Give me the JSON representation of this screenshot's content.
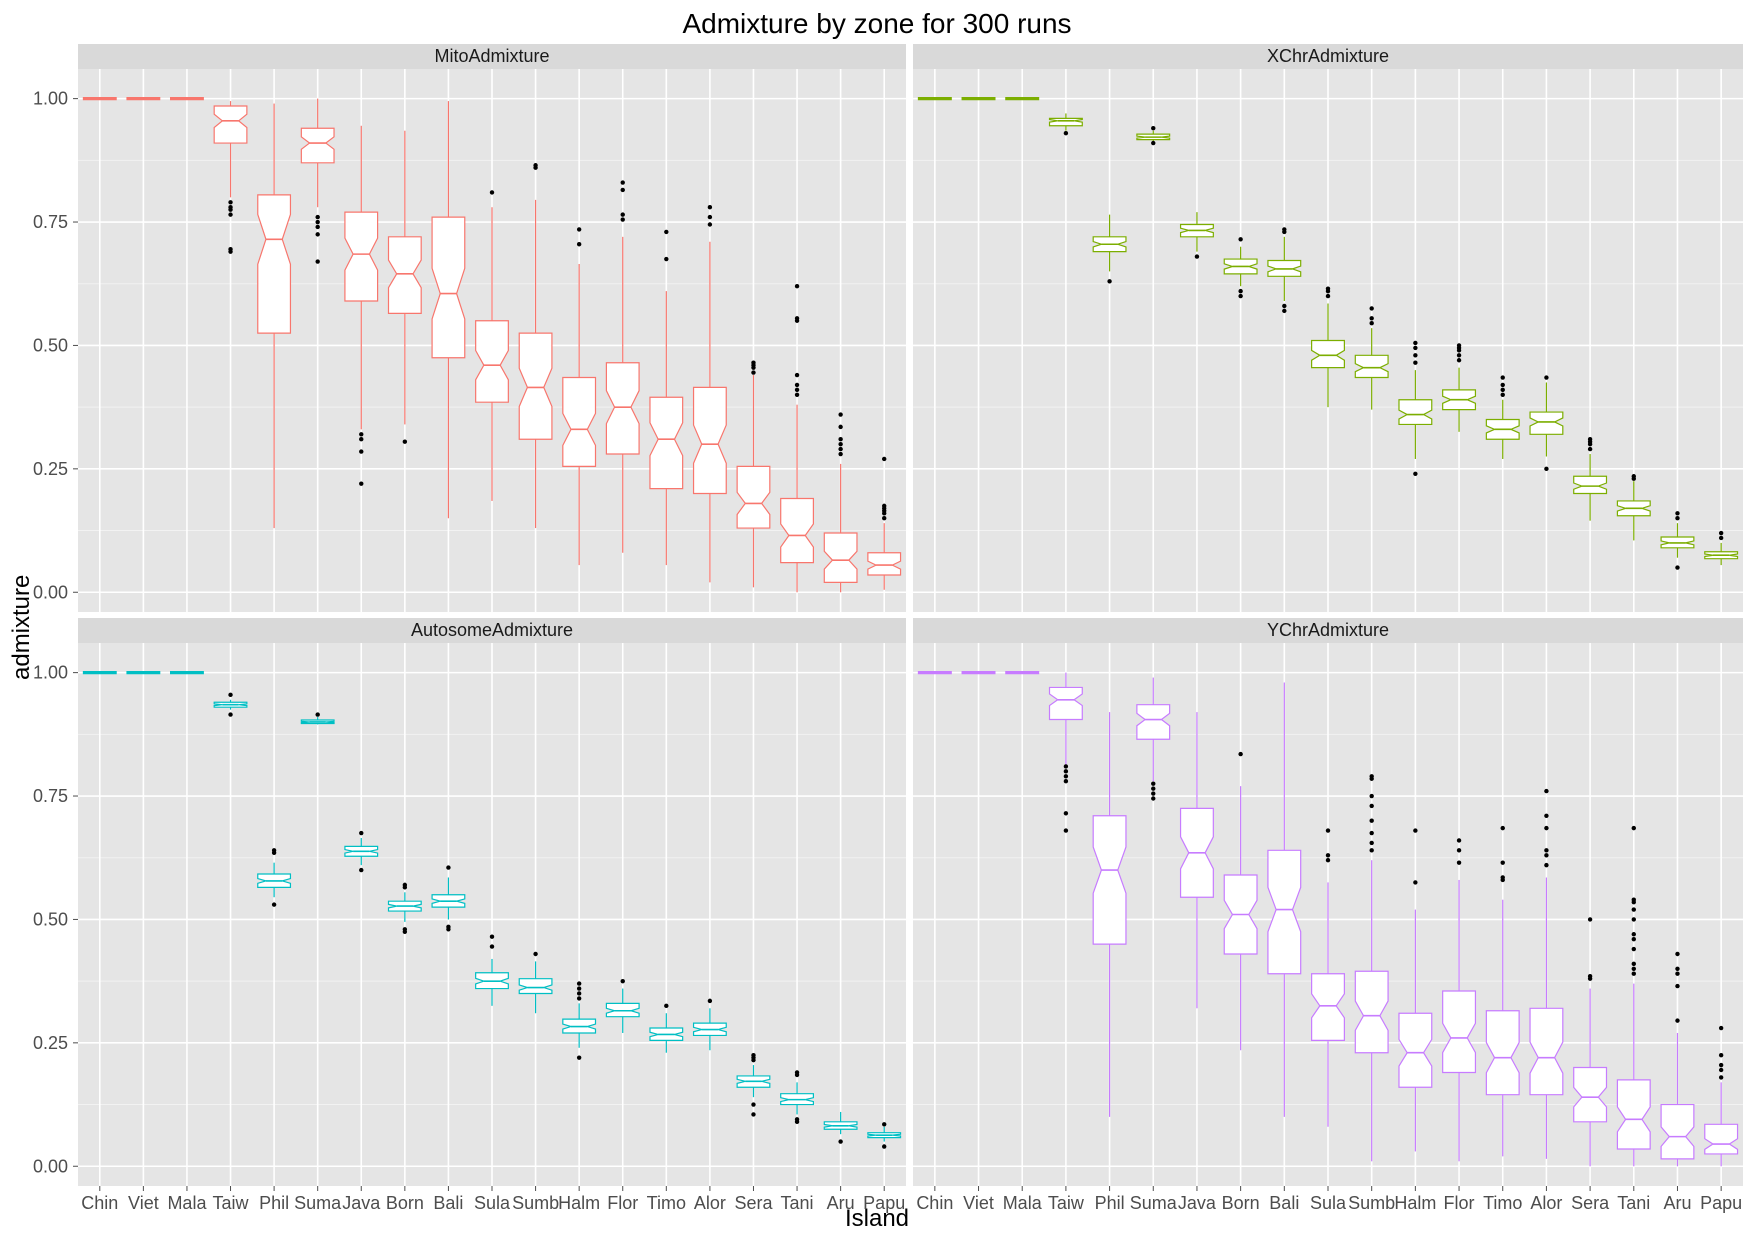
{
  "title": "Admixture by zone for 300 runs",
  "xlabel": "Island",
  "ylabel": "admixture",
  "chart_data": {
    "type": "boxplot",
    "title": "Admixture by zone for 300 runs",
    "xlabel": "Island",
    "ylabel": "admixture",
    "ylim": [
      -0.04,
      1.06
    ],
    "y_ticks": [
      0.0,
      0.25,
      0.5,
      0.75,
      1.0
    ],
    "y_tick_labels": [
      "0.00",
      "0.25",
      "0.50",
      "0.75",
      "1.00"
    ],
    "categories": [
      "Chin",
      "Viet",
      "Mala",
      "Taiw",
      "Phil",
      "Suma",
      "Java",
      "Born",
      "Bali",
      "Sula",
      "Sumb",
      "Halm",
      "Flor",
      "Timo",
      "Alor",
      "Sera",
      "Tani",
      "Aru",
      "Papu"
    ],
    "notched": true,
    "grid": true,
    "legend": "none",
    "panels": [
      {
        "name": "MitoAdmixture",
        "color": "#F8766D",
        "boxes": [
          {
            "min": 1.0,
            "q1": 1.0,
            "median": 1.0,
            "q3": 1.0,
            "max": 1.0,
            "outliers": []
          },
          {
            "min": 1.0,
            "q1": 1.0,
            "median": 1.0,
            "q3": 1.0,
            "max": 1.0,
            "outliers": []
          },
          {
            "min": 1.0,
            "q1": 1.0,
            "median": 1.0,
            "q3": 1.0,
            "max": 1.0,
            "outliers": []
          },
          {
            "min": 0.8,
            "q1": 0.91,
            "median": 0.955,
            "q3": 0.985,
            "max": 0.995,
            "outliers": [
              0.69,
              0.695,
              0.765,
              0.775,
              0.78,
              0.79
            ]
          },
          {
            "min": 0.13,
            "q1": 0.525,
            "median": 0.715,
            "q3": 0.805,
            "max": 0.99,
            "outliers": []
          },
          {
            "min": 0.78,
            "q1": 0.87,
            "median": 0.91,
            "q3": 0.94,
            "max": 1.0,
            "outliers": [
              0.67,
              0.725,
              0.74,
              0.75,
              0.76
            ]
          },
          {
            "min": 0.33,
            "q1": 0.59,
            "median": 0.685,
            "q3": 0.77,
            "max": 0.945,
            "outliers": [
              0.22,
              0.285,
              0.31,
              0.32
            ]
          },
          {
            "min": 0.34,
            "q1": 0.565,
            "median": 0.645,
            "q3": 0.72,
            "max": 0.935,
            "outliers": [
              0.305
            ]
          },
          {
            "min": 0.15,
            "q1": 0.475,
            "median": 0.605,
            "q3": 0.76,
            "max": 0.995,
            "outliers": []
          },
          {
            "min": 0.185,
            "q1": 0.385,
            "median": 0.46,
            "q3": 0.55,
            "max": 0.78,
            "outliers": [
              0.81
            ]
          },
          {
            "min": 0.13,
            "q1": 0.31,
            "median": 0.415,
            "q3": 0.525,
            "max": 0.795,
            "outliers": [
              0.86,
              0.865
            ]
          },
          {
            "min": 0.055,
            "q1": 0.255,
            "median": 0.33,
            "q3": 0.435,
            "max": 0.665,
            "outliers": [
              0.705,
              0.735
            ]
          },
          {
            "min": 0.08,
            "q1": 0.28,
            "median": 0.375,
            "q3": 0.465,
            "max": 0.72,
            "outliers": [
              0.755,
              0.765,
              0.815,
              0.83
            ]
          },
          {
            "min": 0.055,
            "q1": 0.21,
            "median": 0.31,
            "q3": 0.395,
            "max": 0.61,
            "outliers": [
              0.675,
              0.73
            ]
          },
          {
            "min": 0.02,
            "q1": 0.2,
            "median": 0.3,
            "q3": 0.415,
            "max": 0.71,
            "outliers": [
              0.745,
              0.76,
              0.78
            ]
          },
          {
            "min": 0.01,
            "q1": 0.13,
            "median": 0.18,
            "q3": 0.255,
            "max": 0.44,
            "outliers": [
              0.445,
              0.455,
              0.46,
              0.465
            ]
          },
          {
            "min": 0.0,
            "q1": 0.06,
            "median": 0.115,
            "q3": 0.19,
            "max": 0.38,
            "outliers": [
              0.4,
              0.41,
              0.42,
              0.44,
              0.55,
              0.555,
              0.62
            ]
          },
          {
            "min": 0.0,
            "q1": 0.02,
            "median": 0.065,
            "q3": 0.12,
            "max": 0.26,
            "outliers": [
              0.28,
              0.29,
              0.3,
              0.31,
              0.335,
              0.36
            ]
          },
          {
            "min": 0.005,
            "q1": 0.035,
            "median": 0.055,
            "q3": 0.08,
            "max": 0.14,
            "outliers": [
              0.15,
              0.16,
              0.165,
              0.17,
              0.175,
              0.27
            ]
          }
        ]
      },
      {
        "name": "XChrAdmixture",
        "color": "#7CAE00",
        "boxes": [
          {
            "min": 1.0,
            "q1": 1.0,
            "median": 1.0,
            "q3": 1.0,
            "max": 1.0,
            "outliers": []
          },
          {
            "min": 1.0,
            "q1": 1.0,
            "median": 1.0,
            "q3": 1.0,
            "max": 1.0,
            "outliers": []
          },
          {
            "min": 1.0,
            "q1": 1.0,
            "median": 1.0,
            "q3": 1.0,
            "max": 1.0,
            "outliers": []
          },
          {
            "min": 0.935,
            "q1": 0.945,
            "median": 0.955,
            "q3": 0.96,
            "max": 0.97,
            "outliers": [
              0.93
            ]
          },
          {
            "min": 0.65,
            "q1": 0.69,
            "median": 0.705,
            "q3": 0.72,
            "max": 0.765,
            "outliers": [
              0.63
            ]
          },
          {
            "min": 0.91,
            "q1": 0.917,
            "median": 0.922,
            "q3": 0.928,
            "max": 0.935,
            "outliers": [
              0.91,
              0.94
            ]
          },
          {
            "min": 0.69,
            "q1": 0.72,
            "median": 0.733,
            "q3": 0.745,
            "max": 0.77,
            "outliers": [
              0.68
            ]
          },
          {
            "min": 0.62,
            "q1": 0.645,
            "median": 0.66,
            "q3": 0.675,
            "max": 0.7,
            "outliers": [
              0.6,
              0.61,
              0.715
            ]
          },
          {
            "min": 0.59,
            "q1": 0.64,
            "median": 0.655,
            "q3": 0.672,
            "max": 0.72,
            "outliers": [
              0.57,
              0.58,
              0.73,
              0.735
            ]
          },
          {
            "min": 0.375,
            "q1": 0.455,
            "median": 0.48,
            "q3": 0.51,
            "max": 0.585,
            "outliers": [
              0.6,
              0.61,
              0.615
            ]
          },
          {
            "min": 0.37,
            "q1": 0.435,
            "median": 0.455,
            "q3": 0.48,
            "max": 0.535,
            "outliers": [
              0.545,
              0.555,
              0.575
            ]
          },
          {
            "min": 0.27,
            "q1": 0.34,
            "median": 0.36,
            "q3": 0.39,
            "max": 0.45,
            "outliers": [
              0.24,
              0.465,
              0.48,
              0.495,
              0.505
            ]
          },
          {
            "min": 0.325,
            "q1": 0.37,
            "median": 0.39,
            "q3": 0.41,
            "max": 0.455,
            "outliers": [
              0.47,
              0.48,
              0.49,
              0.495,
              0.5
            ]
          },
          {
            "min": 0.27,
            "q1": 0.31,
            "median": 0.33,
            "q3": 0.35,
            "max": 0.39,
            "outliers": [
              0.4,
              0.41,
              0.42,
              0.435
            ]
          },
          {
            "min": 0.275,
            "q1": 0.32,
            "median": 0.345,
            "q3": 0.365,
            "max": 0.425,
            "outliers": [
              0.25,
              0.435
            ]
          },
          {
            "min": 0.145,
            "q1": 0.2,
            "median": 0.215,
            "q3": 0.235,
            "max": 0.28,
            "outliers": [
              0.29,
              0.3,
              0.305,
              0.31
            ]
          },
          {
            "min": 0.105,
            "q1": 0.155,
            "median": 0.17,
            "q3": 0.185,
            "max": 0.225,
            "outliers": [
              0.23,
              0.235
            ]
          },
          {
            "min": 0.07,
            "q1": 0.09,
            "median": 0.1,
            "q3": 0.112,
            "max": 0.14,
            "outliers": [
              0.05,
              0.15,
              0.16
            ]
          },
          {
            "min": 0.055,
            "q1": 0.068,
            "median": 0.075,
            "q3": 0.082,
            "max": 0.1,
            "outliers": [
              0.11,
              0.12
            ]
          }
        ]
      },
      {
        "name": "AutosomeAdmixture",
        "color": "#00BFC4",
        "boxes": [
          {
            "min": 1.0,
            "q1": 1.0,
            "median": 1.0,
            "q3": 1.0,
            "max": 1.0,
            "outliers": []
          },
          {
            "min": 1.0,
            "q1": 1.0,
            "median": 1.0,
            "q3": 1.0,
            "max": 1.0,
            "outliers": []
          },
          {
            "min": 1.0,
            "q1": 1.0,
            "median": 1.0,
            "q3": 1.0,
            "max": 1.0,
            "outliers": []
          },
          {
            "min": 0.925,
            "q1": 0.93,
            "median": 0.935,
            "q3": 0.94,
            "max": 0.945,
            "outliers": [
              0.915,
              0.955
            ]
          },
          {
            "min": 0.545,
            "q1": 0.565,
            "median": 0.578,
            "q3": 0.592,
            "max": 0.615,
            "outliers": [
              0.53,
              0.635,
              0.64
            ]
          },
          {
            "min": 0.895,
            "q1": 0.897,
            "median": 0.9,
            "q3": 0.904,
            "max": 0.91,
            "outliers": [
              0.915
            ]
          },
          {
            "min": 0.61,
            "q1": 0.628,
            "median": 0.638,
            "q3": 0.648,
            "max": 0.665,
            "outliers": [
              0.6,
              0.675
            ]
          },
          {
            "min": 0.495,
            "q1": 0.517,
            "median": 0.527,
            "q3": 0.537,
            "max": 0.555,
            "outliers": [
              0.475,
              0.48,
              0.565,
              0.57
            ]
          },
          {
            "min": 0.5,
            "q1": 0.525,
            "median": 0.537,
            "q3": 0.55,
            "max": 0.585,
            "outliers": [
              0.48,
              0.485,
              0.605
            ]
          },
          {
            "min": 0.325,
            "q1": 0.36,
            "median": 0.375,
            "q3": 0.392,
            "max": 0.42,
            "outliers": [
              0.445,
              0.465
            ]
          },
          {
            "min": 0.31,
            "q1": 0.35,
            "median": 0.362,
            "q3": 0.38,
            "max": 0.415,
            "outliers": [
              0.43
            ]
          },
          {
            "min": 0.24,
            "q1": 0.27,
            "median": 0.283,
            "q3": 0.298,
            "max": 0.33,
            "outliers": [
              0.22,
              0.34,
              0.35,
              0.36,
              0.37
            ]
          },
          {
            "min": 0.27,
            "q1": 0.303,
            "median": 0.315,
            "q3": 0.33,
            "max": 0.36,
            "outliers": [
              0.375
            ]
          },
          {
            "min": 0.23,
            "q1": 0.255,
            "median": 0.267,
            "q3": 0.28,
            "max": 0.31,
            "outliers": [
              0.325
            ]
          },
          {
            "min": 0.235,
            "q1": 0.265,
            "median": 0.277,
            "q3": 0.29,
            "max": 0.32,
            "outliers": [
              0.335
            ]
          },
          {
            "min": 0.14,
            "q1": 0.16,
            "median": 0.172,
            "q3": 0.183,
            "max": 0.205,
            "outliers": [
              0.105,
              0.125,
              0.215,
              0.22,
              0.225
            ]
          },
          {
            "min": 0.105,
            "q1": 0.125,
            "median": 0.135,
            "q3": 0.147,
            "max": 0.17,
            "outliers": [
              0.09,
              0.095,
              0.185,
              0.19
            ]
          },
          {
            "min": 0.065,
            "q1": 0.075,
            "median": 0.082,
            "q3": 0.09,
            "max": 0.11,
            "outliers": [
              0.05
            ]
          },
          {
            "min": 0.05,
            "q1": 0.058,
            "median": 0.063,
            "q3": 0.068,
            "max": 0.08,
            "outliers": [
              0.04,
              0.085
            ]
          }
        ]
      },
      {
        "name": "YChrAdmixture",
        "color": "#C77CFF",
        "boxes": [
          {
            "min": 1.0,
            "q1": 1.0,
            "median": 1.0,
            "q3": 1.0,
            "max": 1.0,
            "outliers": []
          },
          {
            "min": 1.0,
            "q1": 1.0,
            "median": 1.0,
            "q3": 1.0,
            "max": 1.0,
            "outliers": []
          },
          {
            "min": 1.0,
            "q1": 1.0,
            "median": 1.0,
            "q3": 1.0,
            "max": 1.0,
            "outliers": []
          },
          {
            "min": 0.81,
            "q1": 0.905,
            "median": 0.945,
            "q3": 0.97,
            "max": 1.0,
            "outliers": [
              0.68,
              0.715,
              0.78,
              0.79,
              0.8,
              0.81
            ]
          },
          {
            "min": 0.1,
            "q1": 0.45,
            "median": 0.6,
            "q3": 0.71,
            "max": 0.92,
            "outliers": []
          },
          {
            "min": 0.78,
            "q1": 0.865,
            "median": 0.905,
            "q3": 0.935,
            "max": 0.99,
            "outliers": [
              0.745,
              0.755,
              0.765,
              0.775
            ]
          },
          {
            "min": 0.32,
            "q1": 0.545,
            "median": 0.635,
            "q3": 0.725,
            "max": 0.92,
            "outliers": []
          },
          {
            "min": 0.235,
            "q1": 0.43,
            "median": 0.51,
            "q3": 0.59,
            "max": 0.77,
            "outliers": [
              0.835
            ]
          },
          {
            "min": 0.1,
            "q1": 0.39,
            "median": 0.52,
            "q3": 0.64,
            "max": 0.98,
            "outliers": []
          },
          {
            "min": 0.08,
            "q1": 0.255,
            "median": 0.325,
            "q3": 0.39,
            "max": 0.575,
            "outliers": [
              0.62,
              0.63,
              0.68
            ]
          },
          {
            "min": 0.01,
            "q1": 0.23,
            "median": 0.305,
            "q3": 0.395,
            "max": 0.62,
            "outliers": [
              0.64,
              0.655,
              0.675,
              0.7,
              0.73,
              0.75,
              0.785,
              0.79
            ]
          },
          {
            "min": 0.03,
            "q1": 0.16,
            "median": 0.23,
            "q3": 0.31,
            "max": 0.52,
            "outliers": [
              0.575,
              0.68
            ]
          },
          {
            "min": 0.01,
            "q1": 0.19,
            "median": 0.26,
            "q3": 0.355,
            "max": 0.58,
            "outliers": [
              0.615,
              0.64,
              0.66
            ]
          },
          {
            "min": 0.02,
            "q1": 0.145,
            "median": 0.22,
            "q3": 0.315,
            "max": 0.54,
            "outliers": [
              0.58,
              0.585,
              0.615,
              0.685
            ]
          },
          {
            "min": 0.015,
            "q1": 0.145,
            "median": 0.22,
            "q3": 0.32,
            "max": 0.585,
            "outliers": [
              0.61,
              0.63,
              0.64,
              0.685,
              0.71,
              0.76
            ]
          },
          {
            "min": 0.0,
            "q1": 0.09,
            "median": 0.14,
            "q3": 0.2,
            "max": 0.36,
            "outliers": [
              0.38,
              0.385,
              0.5
            ]
          },
          {
            "min": 0.0,
            "q1": 0.035,
            "median": 0.095,
            "q3": 0.175,
            "max": 0.37,
            "outliers": [
              0.39,
              0.4,
              0.41,
              0.44,
              0.46,
              0.47,
              0.5,
              0.52,
              0.535,
              0.54,
              0.685
            ]
          },
          {
            "min": 0.0,
            "q1": 0.015,
            "median": 0.06,
            "q3": 0.125,
            "max": 0.27,
            "outliers": [
              0.295,
              0.365,
              0.39,
              0.4,
              0.43
            ]
          },
          {
            "min": 0.0,
            "q1": 0.025,
            "median": 0.045,
            "q3": 0.085,
            "max": 0.17,
            "outliers": [
              0.18,
              0.195,
              0.205,
              0.225,
              0.28
            ]
          }
        ]
      }
    ]
  }
}
